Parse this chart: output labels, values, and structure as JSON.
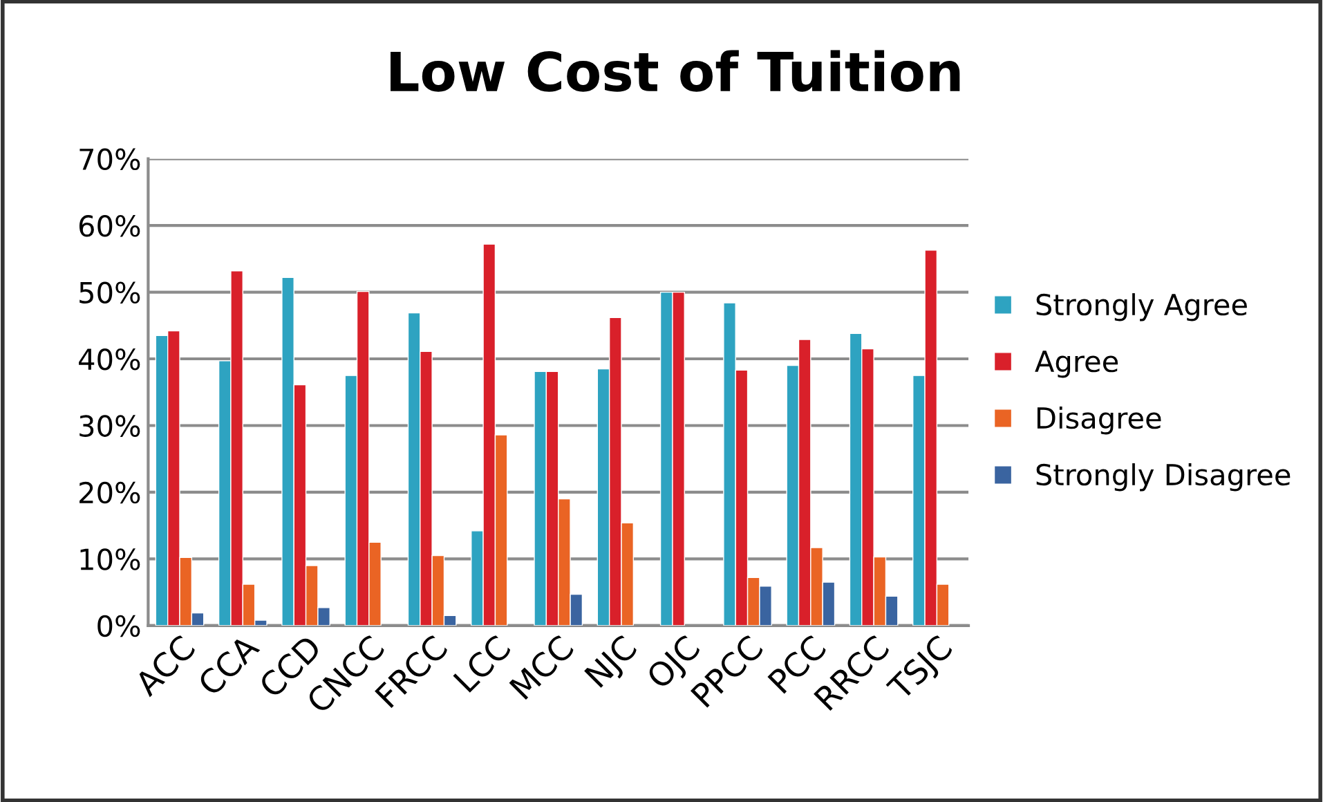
{
  "chart_data": {
    "type": "bar",
    "title": "Low Cost of Tuition",
    "categories": [
      "ACC",
      "CCA",
      "CCD",
      "CNCC",
      "FRCC",
      "LCC",
      "MCC",
      "NJC",
      "OJC",
      "PPCC",
      "PCC",
      "RRCC",
      "TSJC"
    ],
    "series": [
      {
        "name": "Strongly Agree",
        "color": "#2ea3c1",
        "values": [
          43.5,
          39.7,
          52.2,
          37.5,
          46.9,
          14.2,
          38.1,
          38.5,
          50,
          48.4,
          39.0,
          43.8,
          37.5
        ]
      },
      {
        "name": "Agree",
        "color": "#d9202a",
        "values": [
          44.2,
          53.2,
          36.1,
          50.1,
          41.1,
          57.2,
          38.1,
          46.2,
          50,
          38.3,
          42.9,
          41.5,
          56.3
        ]
      },
      {
        "name": "Disagree",
        "color": "#ea6424",
        "values": [
          10.2,
          6.2,
          9.0,
          12.5,
          10.5,
          28.6,
          19.0,
          15.4,
          null,
          7.2,
          11.7,
          10.3,
          6.2
        ]
      },
      {
        "name": "Strongly Disagree",
        "color": "#3a64a0",
        "values": [
          1.9,
          0.8,
          2.7,
          null,
          1.5,
          null,
          4.7,
          null,
          null,
          5.9,
          6.5,
          4.4,
          null
        ]
      }
    ],
    "ylim": [
      0,
      70
    ],
    "yticks": [
      {
        "value": 0,
        "label": "0%"
      },
      {
        "value": 10,
        "label": "10%"
      },
      {
        "value": 20,
        "label": "20%"
      },
      {
        "value": 30,
        "label": "30%"
      },
      {
        "value": 40,
        "label": "40%"
      },
      {
        "value": 50,
        "label": "50%"
      },
      {
        "value": 60,
        "label": "60%"
      },
      {
        "value": 70,
        "label": "70%"
      }
    ],
    "grid": "y",
    "legend": "right"
  }
}
